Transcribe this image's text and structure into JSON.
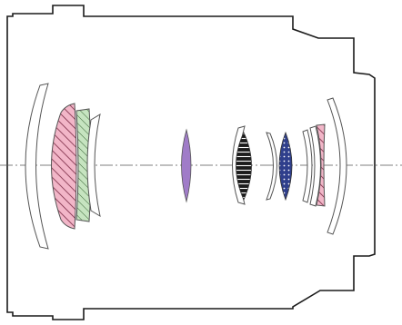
{
  "diagram": {
    "kind": "lens-cross-section",
    "colors": {
      "barrel_outline": "#1a1a1a",
      "optical_axis": "#555555",
      "lens_outline": "#555555",
      "pink_element": "#f2b6c8",
      "pink_hatch": "#7a2a45",
      "green_element": "#c6e4c0",
      "green_hatch": "#3e6a3a",
      "purple_element": "#a07cc8",
      "navy_element": "#2f3f8c",
      "navy_dots": "#ffffff",
      "black_striped": "#1c1c1c",
      "plain_element": "#ffffff"
    },
    "elements": [
      {
        "name": "front-meniscus-element",
        "fill": "plain"
      },
      {
        "name": "front-aspherical-element",
        "fill": "pink-hatched"
      },
      {
        "name": "front-ed-element",
        "fill": "green-hatched"
      },
      {
        "name": "front-inner-meniscus-element",
        "fill": "plain"
      },
      {
        "name": "middle-purple-element",
        "fill": "purple"
      },
      {
        "name": "middle-meniscus-element",
        "fill": "plain"
      },
      {
        "name": "striped-biconvex-element",
        "fill": "black-striped"
      },
      {
        "name": "thin-meniscus-element",
        "fill": "plain"
      },
      {
        "name": "dotted-biconvex-element",
        "fill": "navy-dotted"
      },
      {
        "name": "rear-meniscus-element-a",
        "fill": "plain"
      },
      {
        "name": "rear-meniscus-element-b",
        "fill": "plain"
      },
      {
        "name": "rear-aspherical-element",
        "fill": "pink-hatched"
      },
      {
        "name": "rear-meniscus-element",
        "fill": "plain"
      }
    ]
  }
}
